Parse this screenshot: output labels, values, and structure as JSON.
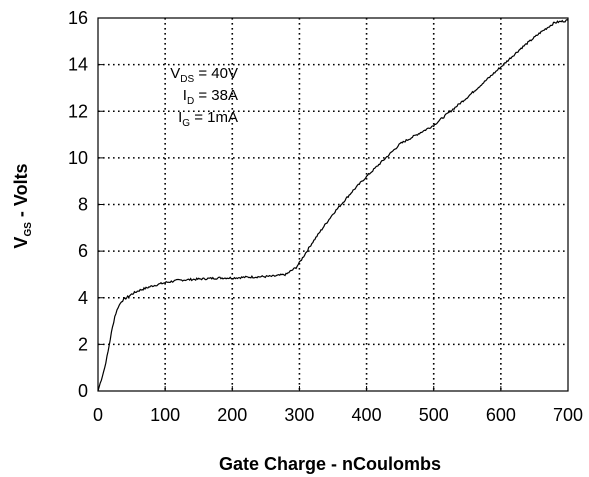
{
  "chart_data": {
    "type": "line",
    "xlabel": "Gate Charge - nCoulombs",
    "ylabel": {
      "main": "V",
      "sub": "GS",
      "rest": " - Volts"
    },
    "xlim": [
      0,
      700
    ],
    "ylim": [
      0,
      16
    ],
    "xticks": [
      0,
      100,
      200,
      300,
      400,
      500,
      600,
      700
    ],
    "yticks": [
      0,
      2,
      4,
      6,
      8,
      10,
      12,
      14,
      16
    ],
    "grid": true,
    "grid_style": "dotted",
    "annotations": [
      {
        "main": "V",
        "sub": "DS",
        "rest": " = 40V"
      },
      {
        "main": "I",
        "sub": "D",
        "rest": " = 38A"
      },
      {
        "main": "I",
        "sub": "G",
        "rest": " = 1mA"
      }
    ],
    "series": [
      {
        "color": "#000000",
        "x": [
          0,
          5,
          10,
          15,
          20,
          25,
          30,
          35,
          40,
          50,
          60,
          70,
          80,
          100,
          120,
          150,
          180,
          200,
          220,
          240,
          260,
          280,
          290,
          295,
          300,
          320,
          350,
          380,
          400,
          450,
          500,
          550,
          600,
          630,
          660,
          680,
          690,
          700
        ],
        "y": [
          0.0,
          0.5,
          1.0,
          1.7,
          2.5,
          3.2,
          3.6,
          3.85,
          3.95,
          4.15,
          4.3,
          4.4,
          4.5,
          4.65,
          4.75,
          4.8,
          4.85,
          4.85,
          4.88,
          4.9,
          4.92,
          5.0,
          5.2,
          5.3,
          5.5,
          6.4,
          7.6,
          8.6,
          9.2,
          10.6,
          11.4,
          12.6,
          13.9,
          14.7,
          15.4,
          15.8,
          15.85,
          15.9
        ]
      }
    ]
  }
}
